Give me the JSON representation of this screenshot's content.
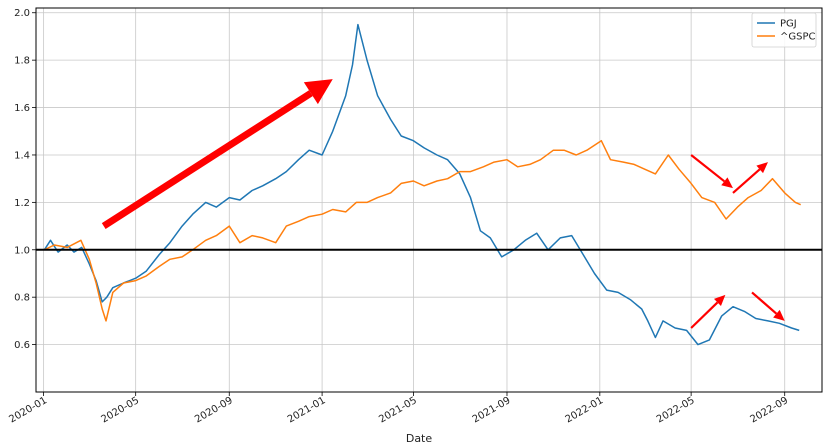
{
  "chart_data": {
    "type": "line",
    "xlabel": "Date",
    "ylabel": "",
    "x_range": [
      "2019-12-22",
      "2022-10-20"
    ],
    "ylim": [
      0.4,
      2.02
    ],
    "grid": true,
    "legend_position": "top-right",
    "x_ticks": [
      "2020-01",
      "2020-05",
      "2020-09",
      "2021-01",
      "2021-05",
      "2021-09",
      "2022-01",
      "2022-05",
      "2022-09"
    ],
    "y_ticks": [
      "0.6",
      "0.8",
      "1.0",
      "1.2",
      "1.4",
      "1.6",
      "1.8",
      "2.0"
    ],
    "reference_line": {
      "y": 1.0,
      "color": "#000000"
    },
    "series": [
      {
        "name": "PGJ",
        "color": "#1f77b4",
        "x": [
          "2020-01-02",
          "2020-01-10",
          "2020-01-20",
          "2020-02-01",
          "2020-02-10",
          "2020-02-20",
          "2020-03-01",
          "2020-03-10",
          "2020-03-18",
          "2020-03-24",
          "2020-04-01",
          "2020-04-15",
          "2020-05-01",
          "2020-05-15",
          "2020-06-01",
          "2020-06-15",
          "2020-07-01",
          "2020-07-15",
          "2020-08-01",
          "2020-08-15",
          "2020-09-01",
          "2020-09-15",
          "2020-10-01",
          "2020-10-15",
          "2020-11-01",
          "2020-11-15",
          "2020-12-01",
          "2020-12-15",
          "2021-01-01",
          "2021-01-15",
          "2021-02-01",
          "2021-02-10",
          "2021-02-17",
          "2021-03-01",
          "2021-03-15",
          "2021-04-01",
          "2021-04-15",
          "2021-05-01",
          "2021-05-15",
          "2021-06-01",
          "2021-06-15",
          "2021-07-01",
          "2021-07-15",
          "2021-07-28",
          "2021-08-10",
          "2021-08-25",
          "2021-09-10",
          "2021-09-25",
          "2021-10-10",
          "2021-10-25",
          "2021-11-10",
          "2021-11-25",
          "2021-12-10",
          "2021-12-25",
          "2022-01-10",
          "2022-01-25",
          "2022-02-10",
          "2022-02-25",
          "2022-03-05",
          "2022-03-15",
          "2022-03-25",
          "2022-04-10",
          "2022-04-25",
          "2022-05-10",
          "2022-05-25",
          "2022-06-10",
          "2022-06-25",
          "2022-07-10",
          "2022-07-25",
          "2022-08-10",
          "2022-08-25",
          "2022-09-10",
          "2022-09-20"
        ],
        "values": [
          1.0,
          1.04,
          0.99,
          1.02,
          0.99,
          1.01,
          0.94,
          0.87,
          0.78,
          0.8,
          0.84,
          0.86,
          0.88,
          0.91,
          0.98,
          1.03,
          1.1,
          1.15,
          1.2,
          1.18,
          1.22,
          1.21,
          1.25,
          1.27,
          1.3,
          1.33,
          1.38,
          1.42,
          1.4,
          1.5,
          1.65,
          1.78,
          1.95,
          1.8,
          1.65,
          1.55,
          1.48,
          1.46,
          1.43,
          1.4,
          1.38,
          1.32,
          1.22,
          1.08,
          1.05,
          0.97,
          1.0,
          1.04,
          1.07,
          1.0,
          1.05,
          1.06,
          0.98,
          0.9,
          0.83,
          0.82,
          0.79,
          0.75,
          0.7,
          0.63,
          0.7,
          0.67,
          0.66,
          0.6,
          0.62,
          0.72,
          0.76,
          0.74,
          0.71,
          0.7,
          0.69,
          0.67,
          0.66
        ]
      },
      {
        "name": "^GSPC",
        "color": "#ff7f0e",
        "x": [
          "2020-01-02",
          "2020-01-15",
          "2020-02-01",
          "2020-02-19",
          "2020-03-01",
          "2020-03-10",
          "2020-03-18",
          "2020-03-23",
          "2020-04-01",
          "2020-04-15",
          "2020-05-01",
          "2020-05-15",
          "2020-06-01",
          "2020-06-15",
          "2020-07-01",
          "2020-07-15",
          "2020-08-01",
          "2020-08-15",
          "2020-09-01",
          "2020-09-15",
          "2020-10-01",
          "2020-10-15",
          "2020-11-01",
          "2020-11-15",
          "2020-12-01",
          "2020-12-15",
          "2021-01-01",
          "2021-01-15",
          "2021-02-01",
          "2021-02-15",
          "2021-03-01",
          "2021-03-15",
          "2021-04-01",
          "2021-04-15",
          "2021-05-01",
          "2021-05-15",
          "2021-06-01",
          "2021-06-15",
          "2021-07-01",
          "2021-07-15",
          "2021-08-01",
          "2021-08-15",
          "2021-09-01",
          "2021-09-15",
          "2021-10-01",
          "2021-10-15",
          "2021-11-01",
          "2021-11-15",
          "2021-12-01",
          "2021-12-15",
          "2022-01-03",
          "2022-01-15",
          "2022-02-01",
          "2022-02-15",
          "2022-03-01",
          "2022-03-15",
          "2022-04-01",
          "2022-04-15",
          "2022-05-01",
          "2022-05-15",
          "2022-06-01",
          "2022-06-16",
          "2022-07-01",
          "2022-07-15",
          "2022-08-01",
          "2022-08-16",
          "2022-09-01",
          "2022-09-15",
          "2022-09-22"
        ],
        "values": [
          1.0,
          1.02,
          1.01,
          1.04,
          0.96,
          0.86,
          0.75,
          0.7,
          0.82,
          0.86,
          0.87,
          0.89,
          0.93,
          0.96,
          0.97,
          1.0,
          1.04,
          1.06,
          1.1,
          1.03,
          1.06,
          1.05,
          1.03,
          1.1,
          1.12,
          1.14,
          1.15,
          1.17,
          1.16,
          1.2,
          1.2,
          1.22,
          1.24,
          1.28,
          1.29,
          1.27,
          1.29,
          1.3,
          1.33,
          1.33,
          1.35,
          1.37,
          1.38,
          1.35,
          1.36,
          1.38,
          1.42,
          1.42,
          1.4,
          1.42,
          1.46,
          1.38,
          1.37,
          1.36,
          1.34,
          1.32,
          1.4,
          1.34,
          1.28,
          1.22,
          1.2,
          1.13,
          1.18,
          1.22,
          1.25,
          1.3,
          1.24,
          1.2,
          1.19
        ]
      }
    ],
    "annotations": [
      {
        "type": "arrow",
        "color": "#ff0000",
        "from": [
          "2020-03-20",
          1.1
        ],
        "to": [
          "2021-01-15",
          1.72
        ]
      },
      {
        "type": "arrow",
        "color": "#ff0000",
        "from": [
          "2022-05-01",
          1.4
        ],
        "to": [
          "2022-06-25",
          1.26
        ]
      },
      {
        "type": "arrow",
        "color": "#ff0000",
        "from": [
          "2022-06-25",
          1.24
        ],
        "to": [
          "2022-08-10",
          1.37
        ]
      },
      {
        "type": "arrow",
        "color": "#ff0000",
        "from": [
          "2022-05-01",
          0.67
        ],
        "to": [
          "2022-06-15",
          0.81
        ]
      },
      {
        "type": "arrow",
        "color": "#ff0000",
        "from": [
          "2022-07-20",
          0.82
        ],
        "to": [
          "2022-09-01",
          0.7
        ]
      }
    ]
  }
}
